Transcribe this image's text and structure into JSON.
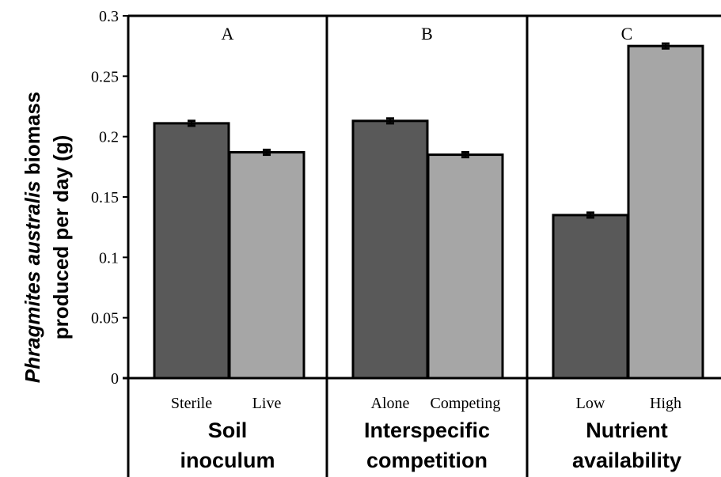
{
  "chart_data": {
    "type": "bar",
    "ylabel_line1": {
      "italic": "Phragmites australis",
      "rest": " biomass"
    },
    "ylabel_line2": "produced per day (g)",
    "ylim": [
      0,
      0.3
    ],
    "yticks": [
      "0",
      "0.05",
      "0.1",
      "0.15",
      "0.2",
      "0.25",
      "0.3"
    ],
    "colors": {
      "first": "#595959",
      "second": "#a6a6a6"
    },
    "panels": [
      {
        "label": "A",
        "group_lines": [
          "Soil",
          "inoculum"
        ],
        "categories": [
          "Sterile",
          "Live"
        ],
        "values": [
          0.211,
          0.187
        ],
        "errors": [
          0.002,
          0.002
        ]
      },
      {
        "label": "B",
        "group_lines": [
          "Interspecific",
          "competition"
        ],
        "categories": [
          "Alone",
          "Competing"
        ],
        "values": [
          0.213,
          0.185
        ],
        "errors": [
          0.002,
          0.002
        ]
      },
      {
        "label": "C",
        "group_lines": [
          "Nutrient",
          "availability"
        ],
        "categories": [
          "Low",
          "High"
        ],
        "values": [
          0.135,
          0.275
        ],
        "errors": [
          0.002,
          0.002
        ]
      }
    ]
  }
}
